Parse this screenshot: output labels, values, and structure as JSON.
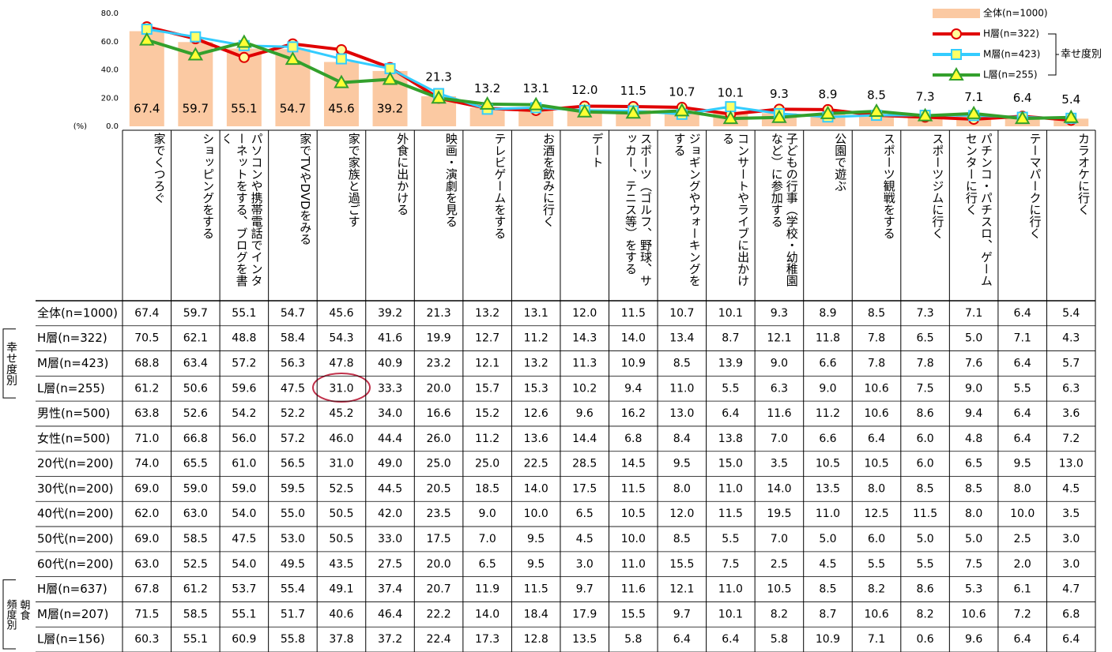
{
  "chart_data": {
    "type": "bar",
    "y_label": "(%)",
    "ylim": [
      0,
      80
    ],
    "yticks": [
      {
        "value": 0,
        "label": "0.0"
      },
      {
        "value": 20,
        "label": "20.0"
      },
      {
        "value": 40,
        "label": "40.0"
      },
      {
        "value": 60,
        "label": "60.0"
      },
      {
        "value": 80,
        "label": "80.0"
      }
    ],
    "grid": false,
    "legend": "top-right",
    "legend_group": "幸せ度別",
    "categories": [
      "家でくつろぐ",
      "ショッピングをする",
      "パソコンや携帯電話でインターネットをする、ブログを書く",
      "家でTVやDVDをみる",
      "家で家族と過ごす",
      "外食に出かける",
      "映画・演劇を見る",
      "テレビゲームをする",
      "お酒を飲みに行く",
      "デート",
      "スポーツ（ゴルフ、野球、サッカー、テニス等）をする",
      "ジョギングやウォーキングをする",
      "コンサートやライブに出かける",
      "子どもの行事（学校・幼稚園など）に参加する",
      "公園で遊ぶ",
      "スポーツ観戦をする",
      "スポーツジムに行く",
      "パチンコ・パチスロ、ゲームセンターに行く",
      "テーマパークに行く",
      "カラオケに行く"
    ],
    "series": [
      {
        "name": "全体(n=1000)",
        "type": "bar",
        "color": "#fbc9a2",
        "values": [
          67.4,
          59.7,
          55.1,
          54.7,
          45.6,
          39.2,
          21.3,
          13.2,
          13.1,
          12.0,
          11.5,
          10.7,
          10.1,
          9.3,
          8.9,
          8.5,
          7.3,
          7.1,
          6.4,
          5.4
        ],
        "value_labels": [
          "67.4",
          "59.7",
          "55.1",
          "54.7",
          "45.6",
          "39.2",
          "21.3",
          "13.2",
          "13.1",
          "12.0",
          "11.5",
          "10.7",
          "10.1",
          "9.3",
          "8.9",
          "8.5",
          "7.3",
          "7.1",
          "6.4",
          "5.4"
        ]
      },
      {
        "name": "H層(n=322)",
        "type": "line",
        "marker": "circle",
        "color": "#e00000",
        "values": [
          70.5,
          62.1,
          48.8,
          58.4,
          54.3,
          41.6,
          19.9,
          12.7,
          11.2,
          14.3,
          14.0,
          13.4,
          8.7,
          12.1,
          11.8,
          7.8,
          6.5,
          5.0,
          7.1,
          4.3
        ]
      },
      {
        "name": "M層(n=423)",
        "type": "line",
        "marker": "square",
        "color": "#33ccff",
        "values": [
          68.8,
          63.4,
          57.2,
          56.3,
          47.8,
          40.9,
          23.2,
          12.1,
          13.2,
          11.3,
          10.9,
          8.5,
          13.9,
          9.0,
          6.6,
          7.8,
          7.8,
          7.6,
          6.4,
          5.7
        ]
      },
      {
        "name": "L層(n=255)",
        "type": "line",
        "marker": "triangle",
        "color": "#33a02c",
        "values": [
          61.2,
          50.6,
          59.6,
          47.5,
          31.0,
          33.3,
          20.0,
          15.7,
          15.3,
          10.2,
          9.4,
          11.0,
          5.5,
          6.3,
          9.0,
          10.6,
          7.5,
          9.0,
          5.5,
          6.3
        ]
      }
    ]
  },
  "table": {
    "groups": [
      {
        "label": "幸せ度別"
      },
      {
        "label": "朝食",
        "sublabel": "頻度別"
      }
    ],
    "rows": [
      {
        "label": "全体(n=1000)",
        "values": [
          "67.4",
          "59.7",
          "55.1",
          "54.7",
          "45.6",
          "39.2",
          "21.3",
          "13.2",
          "13.1",
          "12.0",
          "11.5",
          "10.7",
          "10.1",
          "9.3",
          "8.9",
          "8.5",
          "7.3",
          "7.1",
          "6.4",
          "5.4"
        ]
      },
      {
        "label": "H層(n=322)",
        "values": [
          "70.5",
          "62.1",
          "48.8",
          "58.4",
          "54.3",
          "41.6",
          "19.9",
          "12.7",
          "11.2",
          "14.3",
          "14.0",
          "13.4",
          "8.7",
          "12.1",
          "11.8",
          "7.8",
          "6.5",
          "5.0",
          "7.1",
          "4.3"
        ]
      },
      {
        "label": "M層(n=423)",
        "values": [
          "68.8",
          "63.4",
          "57.2",
          "56.3",
          "47.8",
          "40.9",
          "23.2",
          "12.1",
          "13.2",
          "11.3",
          "10.9",
          "8.5",
          "13.9",
          "9.0",
          "6.6",
          "7.8",
          "7.8",
          "7.6",
          "6.4",
          "5.7"
        ]
      },
      {
        "label": "L層(n=255)",
        "values": [
          "61.2",
          "50.6",
          "59.6",
          "47.5",
          "31.0",
          "33.3",
          "20.0",
          "15.7",
          "15.3",
          "10.2",
          "9.4",
          "11.0",
          "5.5",
          "6.3",
          "9.0",
          "10.6",
          "7.5",
          "9.0",
          "5.5",
          "6.3"
        ]
      },
      {
        "label": "男性(n=500)",
        "values": [
          "63.8",
          "52.6",
          "54.2",
          "52.2",
          "45.2",
          "34.0",
          "16.6",
          "15.2",
          "12.6",
          "9.6",
          "16.2",
          "13.0",
          "6.4",
          "11.6",
          "11.2",
          "10.6",
          "8.6",
          "9.4",
          "6.4",
          "3.6"
        ]
      },
      {
        "label": "女性(n=500)",
        "values": [
          "71.0",
          "66.8",
          "56.0",
          "57.2",
          "46.0",
          "44.4",
          "26.0",
          "11.2",
          "13.6",
          "14.4",
          "6.8",
          "8.4",
          "13.8",
          "7.0",
          "6.6",
          "6.4",
          "6.0",
          "4.8",
          "6.4",
          "7.2"
        ]
      },
      {
        "label": "20代(n=200)",
        "values": [
          "74.0",
          "65.5",
          "61.0",
          "56.5",
          "31.0",
          "49.0",
          "25.0",
          "25.0",
          "22.5",
          "28.5",
          "14.5",
          "9.5",
          "15.0",
          "3.5",
          "10.5",
          "10.5",
          "6.0",
          "6.5",
          "9.5",
          "13.0"
        ]
      },
      {
        "label": "30代(n=200)",
        "values": [
          "69.0",
          "59.0",
          "59.0",
          "59.5",
          "52.5",
          "44.5",
          "20.5",
          "18.5",
          "14.0",
          "17.5",
          "11.5",
          "8.0",
          "11.0",
          "14.0",
          "13.5",
          "8.0",
          "8.5",
          "8.5",
          "8.0",
          "4.5"
        ]
      },
      {
        "label": "40代(n=200)",
        "values": [
          "62.0",
          "63.0",
          "54.0",
          "55.0",
          "50.5",
          "42.0",
          "23.5",
          "9.0",
          "10.0",
          "6.5",
          "10.5",
          "12.0",
          "11.5",
          "19.5",
          "11.0",
          "12.5",
          "11.5",
          "8.0",
          "10.0",
          "3.5"
        ]
      },
      {
        "label": "50代(n=200)",
        "values": [
          "69.0",
          "58.5",
          "47.5",
          "53.0",
          "50.5",
          "33.0",
          "17.5",
          "7.0",
          "9.5",
          "4.5",
          "10.0",
          "8.5",
          "5.5",
          "7.0",
          "5.0",
          "6.0",
          "5.0",
          "5.0",
          "2.5",
          "3.0"
        ]
      },
      {
        "label": "60代(n=200)",
        "values": [
          "63.0",
          "52.5",
          "54.0",
          "49.5",
          "43.5",
          "27.5",
          "20.0",
          "6.5",
          "9.5",
          "3.0",
          "11.0",
          "15.5",
          "7.5",
          "2.5",
          "4.5",
          "5.5",
          "5.5",
          "7.5",
          "2.0",
          "3.0"
        ]
      },
      {
        "label": "H層(n=637)",
        "values": [
          "67.8",
          "61.2",
          "53.7",
          "55.4",
          "49.1",
          "37.4",
          "20.7",
          "11.9",
          "11.5",
          "9.7",
          "11.6",
          "12.1",
          "11.0",
          "10.5",
          "8.5",
          "8.2",
          "8.6",
          "5.3",
          "6.1",
          "4.7"
        ]
      },
      {
        "label": "M層(n=207)",
        "values": [
          "71.5",
          "58.5",
          "55.1",
          "51.7",
          "40.6",
          "46.4",
          "22.2",
          "14.0",
          "18.4",
          "17.9",
          "15.5",
          "9.7",
          "10.1",
          "8.2",
          "8.7",
          "10.6",
          "8.2",
          "10.6",
          "7.2",
          "6.8"
        ]
      },
      {
        "label": "L層(n=156)",
        "values": [
          "60.3",
          "55.1",
          "60.9",
          "55.8",
          "37.8",
          "37.2",
          "22.4",
          "17.3",
          "12.8",
          "13.5",
          "5.8",
          "6.4",
          "6.4",
          "5.8",
          "10.9",
          "7.1",
          "0.6",
          "9.6",
          "6.4",
          "6.4"
        ]
      }
    ]
  }
}
